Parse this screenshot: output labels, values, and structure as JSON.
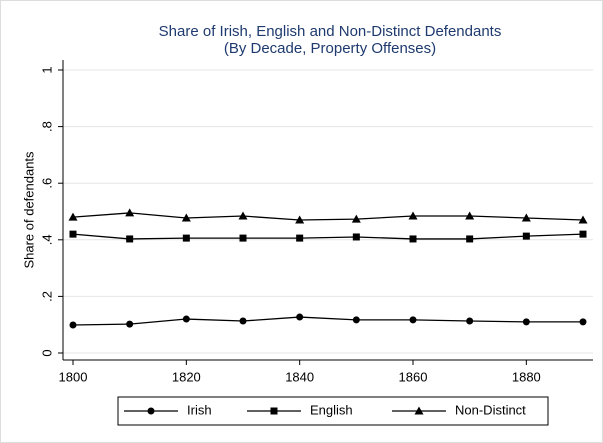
{
  "chart_data": {
    "type": "line",
    "title": "Share of Irish, English and Non-Distinct Defendants",
    "subtitle": "(By Decade, Property Offenses)",
    "y_label": "Share of defendants",
    "x": [
      1800,
      1810,
      1820,
      1830,
      1840,
      1850,
      1860,
      1870,
      1880,
      1890
    ],
    "series": [
      {
        "name": "Irish",
        "color": "#000000",
        "marker": "circle",
        "values": [
          0.099,
          0.102,
          0.12,
          0.113,
          0.127,
          0.117,
          0.117,
          0.113,
          0.11,
          0.11
        ]
      },
      {
        "name": "English",
        "color": "#000000",
        "marker": "square",
        "values": [
          0.42,
          0.403,
          0.406,
          0.406,
          0.406,
          0.41,
          0.403,
          0.403,
          0.413,
          0.42
        ]
      },
      {
        "name": "Non-Distinct",
        "color": "#000000",
        "marker": "triangle",
        "values": [
          0.48,
          0.495,
          0.477,
          0.484,
          0.47,
          0.473,
          0.484,
          0.484,
          0.477,
          0.47
        ]
      }
    ],
    "xlim": [
      1800,
      1890
    ],
    "xticks": [
      1800,
      1820,
      1840,
      1860,
      1880
    ],
    "ylim": [
      0,
      1
    ],
    "yticks": [
      0,
      {
        "value": 0.2,
        "label": ".2"
      },
      {
        "value": 0.4,
        "label": ".4"
      },
      {
        "value": 0.6,
        "label": ".6"
      },
      {
        "value": 0.8,
        "label": ".8"
      },
      1
    ],
    "grid": true,
    "legend": "bottom"
  }
}
